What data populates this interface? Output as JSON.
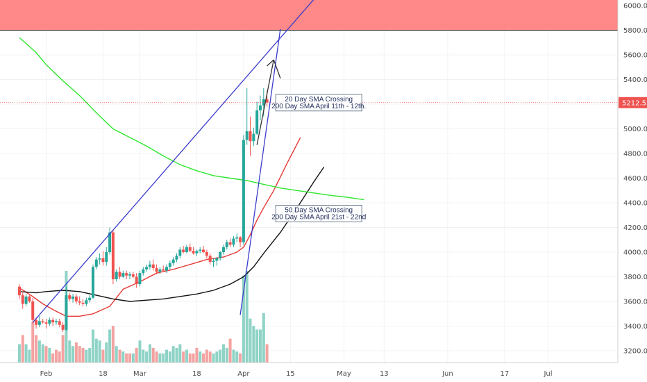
{
  "chart_data": {
    "type": "candlestick",
    "price_axis": {
      "ticks": [
        "6000.00",
        "5800.00",
        "5600.00",
        "5400.00",
        "5200.00",
        "5000.00",
        "4800.00",
        "4600.00",
        "4400.00",
        "4200.00",
        "4000.00",
        "3800.00",
        "3600.00",
        "3400.00",
        "3200.00"
      ],
      "current_price": "5212.53"
    },
    "date_axis": {
      "ticks": [
        {
          "label": "Feb",
          "day": 0
        },
        {
          "label": "18",
          "day": 17
        },
        {
          "label": "Mar",
          "day": 28
        },
        {
          "label": "18",
          "day": 45
        },
        {
          "label": "Apr",
          "day": 59
        },
        {
          "label": "15",
          "day": 73
        },
        {
          "label": "May",
          "day": 89
        },
        {
          "label": "13",
          "day": 101
        },
        {
          "label": "Jun",
          "day": 120
        },
        {
          "label": "17",
          "day": 137
        },
        {
          "label": "Jul",
          "day": 150
        }
      ]
    },
    "candles": [
      [
        -8,
        3720,
        3740,
        3620,
        3650
      ],
      [
        -7,
        3650,
        3680,
        3540,
        3580
      ],
      [
        -6,
        3580,
        3660,
        3560,
        3640
      ],
      [
        -5,
        3640,
        3650,
        3590,
        3600
      ],
      [
        -4,
        3600,
        3630,
        3420,
        3450
      ],
      [
        -3,
        3450,
        3470,
        3380,
        3410
      ],
      [
        -2,
        3410,
        3480,
        3390,
        3440
      ],
      [
        -1,
        3440,
        3460,
        3420,
        3430
      ],
      [
        0,
        3430,
        3460,
        3380,
        3420
      ],
      [
        1,
        3420,
        3470,
        3400,
        3450
      ],
      [
        2,
        3450,
        3470,
        3400,
        3430
      ],
      [
        3,
        3430,
        3460,
        3410,
        3440
      ],
      [
        4,
        3440,
        3460,
        3390,
        3410
      ],
      [
        5,
        3410,
        3430,
        3350,
        3370
      ],
      [
        6,
        3370,
        3720,
        3360,
        3650
      ],
      [
        7,
        3650,
        3670,
        3600,
        3620
      ],
      [
        8,
        3620,
        3660,
        3590,
        3640
      ],
      [
        9,
        3640,
        3660,
        3580,
        3600
      ],
      [
        10,
        3600,
        3640,
        3570,
        3590
      ],
      [
        11,
        3590,
        3620,
        3560,
        3580
      ],
      [
        12,
        3580,
        3630,
        3560,
        3610
      ],
      [
        13,
        3610,
        3650,
        3590,
        3630
      ],
      [
        14,
        3630,
        3900,
        3620,
        3880
      ],
      [
        15,
        3880,
        3960,
        3860,
        3940
      ],
      [
        16,
        3940,
        3990,
        3900,
        3950
      ],
      [
        17,
        3950,
        4010,
        3890,
        3920
      ],
      [
        18,
        3920,
        4040,
        3890,
        4000
      ],
      [
        19,
        4000,
        4200,
        3980,
        4160
      ],
      [
        20,
        4160,
        4180,
        3740,
        3780
      ],
      [
        21,
        3780,
        3860,
        3760,
        3840
      ],
      [
        22,
        3840,
        3880,
        3780,
        3800
      ],
      [
        23,
        3800,
        3850,
        3790,
        3830
      ],
      [
        24,
        3830,
        3850,
        3780,
        3810
      ],
      [
        25,
        3810,
        3840,
        3780,
        3820
      ],
      [
        26,
        3820,
        3840,
        3790,
        3800
      ],
      [
        27,
        3800,
        3830,
        3710,
        3740
      ],
      [
        28,
        3740,
        3850,
        3720,
        3830
      ],
      [
        29,
        3830,
        3880,
        3810,
        3860
      ],
      [
        30,
        3860,
        3900,
        3840,
        3880
      ],
      [
        31,
        3880,
        3930,
        3860,
        3900
      ],
      [
        32,
        3900,
        3940,
        3850,
        3870
      ],
      [
        33,
        3870,
        3900,
        3820,
        3840
      ],
      [
        34,
        3840,
        3880,
        3820,
        3860
      ],
      [
        35,
        3860,
        3890,
        3840,
        3850
      ],
      [
        36,
        3850,
        3900,
        3830,
        3880
      ],
      [
        37,
        3880,
        3930,
        3860,
        3910
      ],
      [
        38,
        3910,
        3960,
        3890,
        3940
      ],
      [
        39,
        3940,
        3990,
        3920,
        3970
      ],
      [
        40,
        3970,
        4040,
        3950,
        4020
      ],
      [
        41,
        4020,
        4050,
        3990,
        4000
      ],
      [
        42,
        4000,
        4060,
        3990,
        4040
      ],
      [
        43,
        4040,
        4070,
        4000,
        4010
      ],
      [
        44,
        4010,
        4040,
        3980,
        3990
      ],
      [
        45,
        3990,
        4020,
        3970,
        4010
      ],
      [
        46,
        4010,
        4040,
        3990,
        4020
      ],
      [
        47,
        4020,
        4050,
        3990,
        4000
      ],
      [
        48,
        4000,
        4020,
        3950,
        3970
      ],
      [
        49,
        3970,
        3990,
        3900,
        3920
      ],
      [
        50,
        3920,
        3950,
        3880,
        3930
      ],
      [
        51,
        3930,
        3960,
        3890,
        3950
      ],
      [
        52,
        3950,
        4010,
        3930,
        4000
      ],
      [
        53,
        4000,
        4060,
        3980,
        4040
      ],
      [
        54,
        4040,
        4100,
        4020,
        4080
      ],
      [
        55,
        4080,
        4110,
        4040,
        4060
      ],
      [
        56,
        4060,
        4130,
        4040,
        4110
      ],
      [
        57,
        4110,
        4150,
        4080,
        4120
      ],
      [
        58,
        4120,
        4130,
        4040,
        4080
      ],
      [
        59,
        4080,
        4950,
        4060,
        4910
      ],
      [
        60,
        4910,
        5330,
        4870,
        4980
      ],
      [
        61,
        4980,
        5100,
        4780,
        4900
      ],
      [
        62,
        4900,
        5010,
        4860,
        4960
      ],
      [
        63,
        4960,
        5220,
        4950,
        5150
      ],
      [
        64,
        5150,
        5270,
        5070,
        5190
      ],
      [
        65,
        5190,
        5330,
        5100,
        5240
      ],
      [
        66,
        5240,
        5310,
        5180,
        5213
      ]
    ],
    "volume_scale_max": 100,
    "volume": [
      [
        -8,
        20,
        1
      ],
      [
        -7,
        30,
        0
      ],
      [
        -6,
        20,
        1
      ],
      [
        -5,
        14,
        1
      ],
      [
        -4,
        44,
        0
      ],
      [
        -3,
        30,
        0
      ],
      [
        -2,
        24,
        1
      ],
      [
        -1,
        20,
        1
      ],
      [
        0,
        18,
        0
      ],
      [
        1,
        16,
        1
      ],
      [
        2,
        10,
        0
      ],
      [
        3,
        14,
        0
      ],
      [
        4,
        12,
        0
      ],
      [
        5,
        30,
        0
      ],
      [
        6,
        100,
        1
      ],
      [
        7,
        24,
        1
      ],
      [
        8,
        18,
        1
      ],
      [
        9,
        22,
        0
      ],
      [
        10,
        18,
        0
      ],
      [
        11,
        16,
        0
      ],
      [
        12,
        14,
        1
      ],
      [
        13,
        16,
        1
      ],
      [
        14,
        36,
        1
      ],
      [
        15,
        26,
        1
      ],
      [
        16,
        24,
        1
      ],
      [
        17,
        14,
        0
      ],
      [
        18,
        22,
        1
      ],
      [
        19,
        36,
        1
      ],
      [
        20,
        40,
        0
      ],
      [
        21,
        18,
        1
      ],
      [
        22,
        14,
        0
      ],
      [
        23,
        12,
        1
      ],
      [
        24,
        10,
        0
      ],
      [
        25,
        10,
        0
      ],
      [
        26,
        10,
        1
      ],
      [
        27,
        16,
        0
      ],
      [
        28,
        24,
        1
      ],
      [
        29,
        14,
        1
      ],
      [
        30,
        12,
        1
      ],
      [
        31,
        20,
        1
      ],
      [
        32,
        16,
        0
      ],
      [
        33,
        12,
        0
      ],
      [
        34,
        10,
        1
      ],
      [
        35,
        10,
        1
      ],
      [
        36,
        14,
        1
      ],
      [
        37,
        12,
        1
      ],
      [
        38,
        18,
        1
      ],
      [
        39,
        16,
        1
      ],
      [
        40,
        20,
        1
      ],
      [
        41,
        12,
        0
      ],
      [
        42,
        14,
        1
      ],
      [
        43,
        10,
        0
      ],
      [
        44,
        10,
        0
      ],
      [
        45,
        16,
        0
      ],
      [
        46,
        12,
        1
      ],
      [
        47,
        10,
        0
      ],
      [
        48,
        14,
        0
      ],
      [
        49,
        12,
        0
      ],
      [
        50,
        10,
        1
      ],
      [
        51,
        12,
        1
      ],
      [
        52,
        14,
        1
      ],
      [
        53,
        20,
        1
      ],
      [
        54,
        16,
        1
      ],
      [
        55,
        26,
        0
      ],
      [
        56,
        14,
        1
      ],
      [
        57,
        12,
        1
      ],
      [
        58,
        10,
        0
      ],
      [
        59,
        95,
        1
      ],
      [
        60,
        100,
        1
      ],
      [
        61,
        48,
        1
      ],
      [
        62,
        40,
        1
      ],
      [
        63,
        36,
        1
      ],
      [
        64,
        36,
        1
      ],
      [
        65,
        54,
        1
      ],
      [
        66,
        20,
        0
      ]
    ],
    "series": [
      {
        "name": "",
        "color": "#e53935",
        "points": [
          [
            -8,
            3710
          ],
          [
            -4,
            3640
          ],
          [
            -1,
            3580
          ],
          [
            3,
            3520
          ],
          [
            6,
            3480
          ],
          [
            10,
            3480
          ],
          [
            14,
            3500
          ],
          [
            19,
            3560
          ],
          [
            23,
            3700
          ],
          [
            28,
            3760
          ],
          [
            33,
            3830
          ],
          [
            38,
            3860
          ],
          [
            43,
            3900
          ],
          [
            48,
            3940
          ],
          [
            53,
            3960
          ],
          [
            57,
            4000
          ],
          [
            59,
            4040
          ],
          [
            61,
            4140
          ],
          [
            63,
            4260
          ],
          [
            65,
            4360
          ],
          [
            68,
            4500
          ],
          [
            72,
            4720
          ],
          [
            76,
            4930
          ]
        ]
      },
      {
        "name": "",
        "color": "#111111",
        "points": [
          [
            -8,
            3680
          ],
          [
            -3,
            3670
          ],
          [
            0,
            3680
          ],
          [
            5,
            3690
          ],
          [
            10,
            3680
          ],
          [
            15,
            3650
          ],
          [
            20,
            3620
          ],
          [
            25,
            3600
          ],
          [
            30,
            3610
          ],
          [
            35,
            3620
          ],
          [
            40,
            3640
          ],
          [
            45,
            3660
          ],
          [
            50,
            3690
          ],
          [
            55,
            3740
          ],
          [
            59,
            3800
          ],
          [
            62,
            3880
          ],
          [
            65,
            3990
          ],
          [
            70,
            4160
          ],
          [
            75,
            4360
          ],
          [
            80,
            4570
          ],
          [
            83,
            4690
          ]
        ]
      },
      {
        "name": "",
        "color": "#2ee62e",
        "points": [
          [
            -8,
            5740
          ],
          [
            -3,
            5620
          ],
          [
            0,
            5520
          ],
          [
            5,
            5390
          ],
          [
            10,
            5270
          ],
          [
            15,
            5130
          ],
          [
            20,
            5000
          ],
          [
            25,
            4930
          ],
          [
            30,
            4860
          ],
          [
            35,
            4780
          ],
          [
            40,
            4710
          ],
          [
            45,
            4660
          ],
          [
            50,
            4620
          ],
          [
            55,
            4600
          ],
          [
            60,
            4580
          ],
          [
            65,
            4550
          ],
          [
            70,
            4520
          ],
          [
            75,
            4500
          ],
          [
            80,
            4480
          ],
          [
            85,
            4460
          ],
          [
            90,
            4445
          ],
          [
            95,
            4425
          ]
        ]
      }
    ],
    "trendlines": [
      {
        "color": "#3b3bcc",
        "from": [
          -4,
          3430
        ],
        "to": [
          80,
          6050
        ]
      },
      {
        "color": "#3b3bcc",
        "from": [
          58,
          3490
        ],
        "to": [
          70,
          5810
        ]
      },
      {
        "color": "#333333",
        "from": [
          63,
          4870
        ],
        "to": [
          68,
          5560
        ]
      },
      {
        "color": "#333333",
        "from": [
          66,
          5510
        ],
        "to": [
          68,
          5560
        ]
      },
      {
        "color": "#333333",
        "from": [
          68,
          5560
        ],
        "to": [
          70,
          5410
        ]
      }
    ],
    "resistance_zone": {
      "from": 5800,
      "to": 6030,
      "color": "#ff7b7b"
    },
    "annotations": [
      {
        "lines": [
          "20 Day SMA Crossing",
          "200 Day SMA April 11th - 12th."
        ],
        "anchor": [
          74,
          5100
        ]
      },
      {
        "lines": [
          "50 Day SMA Crossing",
          "200 Day SMA April 21st - 22nd"
        ],
        "anchor": [
          74,
          4200
        ]
      }
    ],
    "colors": {
      "up": "#26a69a",
      "down": "#ef5350",
      "volume_up": "#8fd3c6",
      "volume_down": "#f3a3a1"
    }
  }
}
